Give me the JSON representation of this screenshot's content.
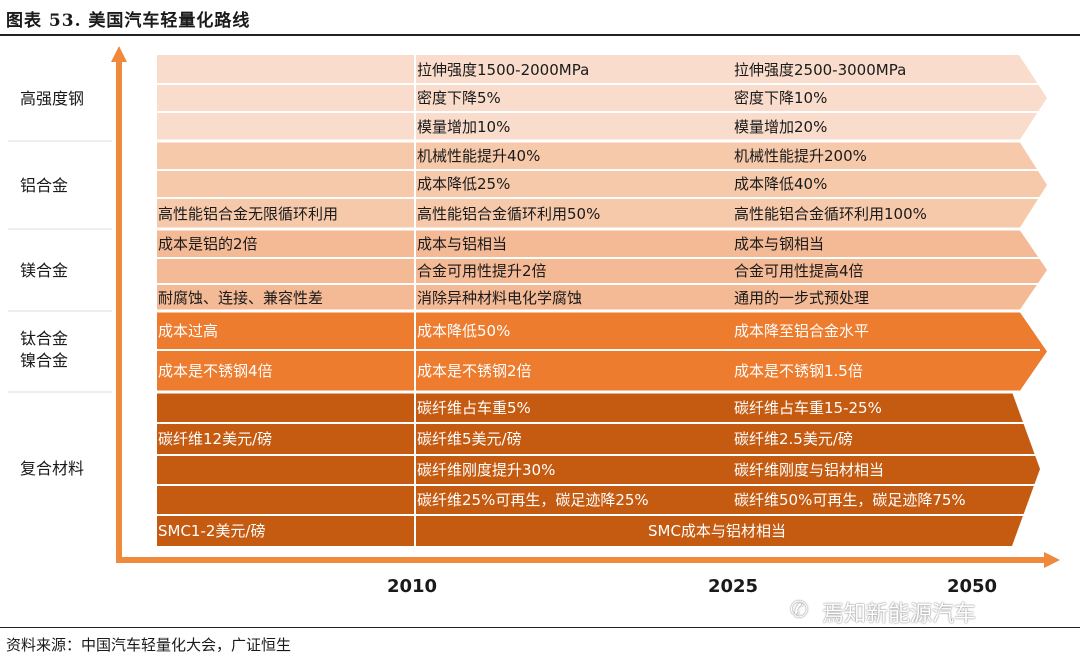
{
  "title": "图表 53. 美国汽车轻量化路线",
  "source": "资料来源：中国汽车轻量化大会，广证恒生",
  "watermark": "焉知新能源汽车",
  "icon": "wechat-icon",
  "colors": {
    "axis": "#EF8A3C",
    "steel": "#F9DCCB",
    "aluminum": "#F6C9AB",
    "magnesium": "#F4B995",
    "titanium": "#EE7C2F",
    "composite": "#C55A11"
  },
  "timeline": [
    "2010",
    "2025",
    "2050"
  ],
  "categories": [
    {
      "label": "高强度钢"
    },
    {
      "label": "铝合金"
    },
    {
      "label": "镁合金"
    },
    {
      "label": "钛合金\n镍合金"
    },
    {
      "label": "复合材料"
    }
  ],
  "rows": [
    {
      "cat": 0,
      "c0": "",
      "c1": "拉伸强度1500-2000MPa",
      "c2": "拉伸强度2500-3000MPa"
    },
    {
      "cat": 0,
      "c0": "",
      "c1": "密度下降5%",
      "c2": "密度下降10%"
    },
    {
      "cat": 0,
      "c0": "",
      "c1": "模量增加10%",
      "c2": "模量增加20%"
    },
    {
      "cat": 1,
      "c0": "",
      "c1": "机械性能提升40%",
      "c2": "机械性能提升200%"
    },
    {
      "cat": 1,
      "c0": "",
      "c1": "成本降低25%",
      "c2": "成本降低40%"
    },
    {
      "cat": 1,
      "c0": "高性能铝合金无限循环利用",
      "c1": "高性能铝合金循环利用50%",
      "c2": "高性能铝合金循环利用100%"
    },
    {
      "cat": 2,
      "c0": "成本是铝的2倍",
      "c1": "成本与铝相当",
      "c2": "成本与钢相当"
    },
    {
      "cat": 2,
      "c0": "",
      "c1": "合金可用性提升2倍",
      "c2": "合金可用性提高4倍"
    },
    {
      "cat": 2,
      "c0": "耐腐蚀、连接、兼容性差",
      "c1": "消除异种材料电化学腐蚀",
      "c2": "通用的一步式预处理"
    },
    {
      "cat": 3,
      "c0": "成本过高",
      "c1": "成本降低50%",
      "c2": "成本降至铝合金水平"
    },
    {
      "cat": 3,
      "c0": "成本是不锈钢4倍",
      "c1": "成本是不锈钢2倍",
      "c2": "成本是不锈钢1.5倍"
    },
    {
      "cat": 4,
      "c0": "",
      "c1": "碳纤维占车重5%",
      "c2": "碳纤维占车重15-25%"
    },
    {
      "cat": 4,
      "c0": "碳纤维12美元/磅",
      "c1": "碳纤维5美元/磅",
      "c2": "碳纤维2.5美元/磅"
    },
    {
      "cat": 4,
      "c0": "",
      "c1": "碳纤维刚度提升30%",
      "c2": "碳纤维刚度与铝材相当"
    },
    {
      "cat": 4,
      "c0": "",
      "c1": "碳纤维25%可再生，碳足迹降25%",
      "c2": "碳纤维50%可再生，碳足迹降75%"
    },
    {
      "cat": 4,
      "c0": "SMC1-2美元/磅",
      "c1": "SMC成本与铝材相当",
      "c2": ""
    }
  ]
}
